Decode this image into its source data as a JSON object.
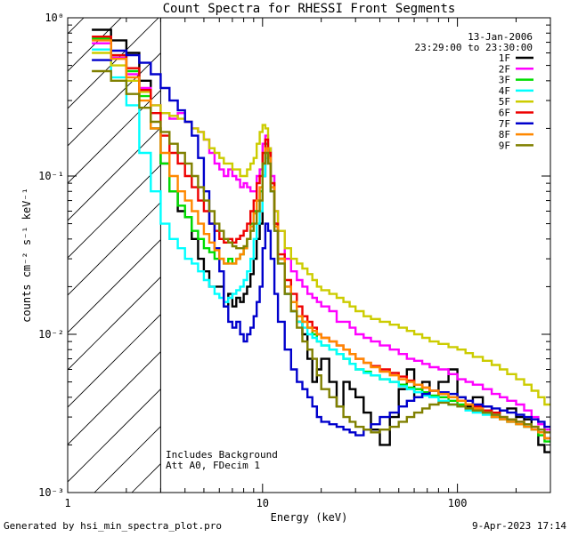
{
  "chart_data": {
    "type": "line",
    "title": "Count Spectra for RHESSI Front Segments",
    "xlabel": "Energy (keV)",
    "ylabel": "counts cm⁻² s⁻¹ keV⁻¹",
    "xscale": "log",
    "yscale": "log",
    "xlim": [
      1,
      300
    ],
    "ylim": [
      0.001,
      1
    ],
    "x_ticks": [
      {
        "value": 1,
        "label": "1"
      },
      {
        "value": 10,
        "label": "10"
      },
      {
        "value": 100,
        "label": "100"
      }
    ],
    "y_ticks": [
      {
        "value": 0.001,
        "label": "10⁻³"
      },
      {
        "value": 0.01,
        "label": "10⁻²"
      },
      {
        "value": 0.1,
        "label": "10⁻¹"
      },
      {
        "value": 1,
        "label": "10⁰"
      }
    ],
    "date": "13-Jan-2006",
    "time_range": "23:29:00 to 23:30:00",
    "shaded_region": {
      "x_from": 1,
      "x_to": 3
    },
    "annotations": [
      "Includes Background",
      "Att A0, FDecim 1"
    ],
    "footer_left": "Generated by hsi_min_spectra_plot.pro",
    "footer_right": "9-Apr-2023 17:14",
    "legend_position": "top-right",
    "energy_bins": [
      1.33,
      1.67,
      2.0,
      2.33,
      2.67,
      3.0,
      3.33,
      3.67,
      4.0,
      4.33,
      4.67,
      5.0,
      5.33,
      5.67,
      6.0,
      6.33,
      6.67,
      7.0,
      7.33,
      7.67,
      8.0,
      8.33,
      8.67,
      9.0,
      9.33,
      9.67,
      10.0,
      10.33,
      10.67,
      11.0,
      11.5,
      12.0,
      13.0,
      14.0,
      15.0,
      16.0,
      17.0,
      18.0,
      19.0,
      20.0,
      22.0,
      24.0,
      26.0,
      28.0,
      30.0,
      33.0,
      36.0,
      40.0,
      45.0,
      50.0,
      55.0,
      60.0,
      66.0,
      72.0,
      80.0,
      90.0,
      100.0,
      110.0,
      120.0,
      135.0,
      150.0,
      165.0,
      180.0,
      200.0,
      220.0,
      240.0,
      260.0,
      280.0,
      300.0
    ],
    "series": [
      {
        "name": "1F",
        "color": "#000000",
        "values": [
          0.84,
          0.72,
          0.6,
          0.4,
          0.2,
          0.12,
          0.08,
          0.06,
          0.055,
          0.04,
          0.03,
          0.025,
          0.02,
          0.02,
          0.02,
          0.015,
          0.018,
          0.015,
          0.017,
          0.016,
          0.018,
          0.02,
          0.024,
          0.03,
          0.04,
          0.05,
          0.1,
          0.13,
          0.15,
          0.08,
          0.05,
          0.03,
          0.018,
          0.014,
          0.012,
          0.01,
          0.007,
          0.005,
          0.006,
          0.007,
          0.005,
          0.0035,
          0.005,
          0.0045,
          0.004,
          0.0032,
          0.0025,
          0.002,
          0.003,
          0.0045,
          0.006,
          0.004,
          0.005,
          0.004,
          0.005,
          0.006,
          0.004,
          0.0035,
          0.004,
          0.0035,
          0.003,
          0.0033,
          0.0034,
          0.003,
          0.0029,
          0.0025,
          0.002,
          0.0018,
          0.002
        ]
      },
      {
        "name": "2F",
        "color": "#ff00ff",
        "values": [
          0.69,
          0.56,
          0.44,
          0.36,
          0.28,
          0.25,
          0.23,
          0.25,
          0.22,
          0.2,
          0.19,
          0.17,
          0.14,
          0.12,
          0.11,
          0.1,
          0.11,
          0.1,
          0.095,
          0.085,
          0.09,
          0.085,
          0.08,
          0.08,
          0.1,
          0.11,
          0.16,
          0.18,
          0.15,
          0.1,
          0.06,
          0.045,
          0.03,
          0.025,
          0.022,
          0.02,
          0.018,
          0.017,
          0.016,
          0.015,
          0.014,
          0.012,
          0.012,
          0.011,
          0.01,
          0.0095,
          0.009,
          0.0085,
          0.008,
          0.0075,
          0.007,
          0.0068,
          0.0065,
          0.0062,
          0.006,
          0.0056,
          0.0052,
          0.005,
          0.0048,
          0.0045,
          0.0042,
          0.004,
          0.0038,
          0.0036,
          0.0033,
          0.003,
          0.0027,
          0.0025,
          0.0022
        ]
      },
      {
        "name": "3F",
        "color": "#00dd00",
        "values": [
          0.74,
          0.58,
          0.46,
          0.32,
          0.2,
          0.12,
          0.08,
          0.065,
          0.055,
          0.045,
          0.04,
          0.035,
          0.033,
          0.03,
          0.03,
          0.028,
          0.03,
          0.028,
          0.03,
          0.032,
          0.035,
          0.04,
          0.05,
          0.06,
          0.07,
          0.08,
          0.12,
          0.16,
          0.14,
          0.09,
          0.05,
          0.03,
          0.02,
          0.016,
          0.013,
          0.012,
          0.011,
          0.01,
          0.009,
          0.0085,
          0.008,
          0.0075,
          0.007,
          0.0065,
          0.006,
          0.0058,
          0.0055,
          0.0052,
          0.005,
          0.0048,
          0.0046,
          0.0045,
          0.0043,
          0.0041,
          0.004,
          0.0038,
          0.0036,
          0.0034,
          0.0033,
          0.0032,
          0.003,
          0.0029,
          0.0028,
          0.0027,
          0.0026,
          0.0025,
          0.0023,
          0.0021,
          0.0019
        ]
      },
      {
        "name": "4F",
        "color": "#00ffff",
        "values": [
          0.63,
          0.42,
          0.28,
          0.14,
          0.08,
          0.05,
          0.04,
          0.035,
          0.03,
          0.028,
          0.025,
          0.022,
          0.02,
          0.018,
          0.017,
          0.016,
          0.017,
          0.018,
          0.019,
          0.02,
          0.022,
          0.025,
          0.03,
          0.04,
          0.05,
          0.06,
          0.1,
          0.13,
          0.12,
          0.08,
          0.045,
          0.028,
          0.018,
          0.014,
          0.012,
          0.011,
          0.01,
          0.0095,
          0.009,
          0.0085,
          0.008,
          0.0075,
          0.007,
          0.0065,
          0.006,
          0.0057,
          0.0055,
          0.0052,
          0.005,
          0.0047,
          0.0045,
          0.0043,
          0.0041,
          0.004,
          0.0038,
          0.0036,
          0.0035,
          0.0033,
          0.0032,
          0.0031,
          0.003,
          0.0029,
          0.0028,
          0.0027,
          0.0026,
          0.0025,
          0.0024,
          0.0022,
          0.002
        ]
      },
      {
        "name": "5F",
        "color": "#cccc00",
        "values": [
          0.6,
          0.5,
          0.4,
          0.34,
          0.28,
          0.25,
          0.24,
          0.23,
          0.22,
          0.2,
          0.19,
          0.17,
          0.15,
          0.14,
          0.13,
          0.12,
          0.12,
          0.11,
          0.11,
          0.1,
          0.1,
          0.11,
          0.12,
          0.13,
          0.16,
          0.19,
          0.21,
          0.2,
          0.15,
          0.09,
          0.06,
          0.045,
          0.035,
          0.03,
          0.028,
          0.026,
          0.024,
          0.022,
          0.02,
          0.019,
          0.018,
          0.017,
          0.016,
          0.015,
          0.014,
          0.013,
          0.0125,
          0.012,
          0.0115,
          0.011,
          0.0105,
          0.01,
          0.0095,
          0.009,
          0.0087,
          0.0083,
          0.008,
          0.0076,
          0.0072,
          0.0068,
          0.0064,
          0.006,
          0.0056,
          0.0052,
          0.0048,
          0.0044,
          0.004,
          0.0036,
          0.0032
        ]
      },
      {
        "name": "6F",
        "color": "#ee0000",
        "values": [
          0.76,
          0.58,
          0.48,
          0.35,
          0.25,
          0.18,
          0.14,
          0.12,
          0.1,
          0.085,
          0.07,
          0.06,
          0.05,
          0.045,
          0.04,
          0.038,
          0.04,
          0.038,
          0.04,
          0.042,
          0.045,
          0.05,
          0.06,
          0.07,
          0.09,
          0.1,
          0.14,
          0.17,
          0.14,
          0.09,
          0.05,
          0.032,
          0.022,
          0.018,
          0.015,
          0.013,
          0.012,
          0.011,
          0.01,
          0.0095,
          0.009,
          0.0085,
          0.008,
          0.0075,
          0.007,
          0.0066,
          0.0063,
          0.006,
          0.0057,
          0.0054,
          0.0051,
          0.0048,
          0.0046,
          0.0044,
          0.0042,
          0.004,
          0.0038,
          0.0036,
          0.0035,
          0.0033,
          0.0032,
          0.003,
          0.0029,
          0.0028,
          0.0027,
          0.0026,
          0.0024,
          0.0022,
          0.002
        ]
      },
      {
        "name": "7F",
        "color": "#0000cc",
        "values": [
          0.54,
          0.62,
          0.58,
          0.52,
          0.44,
          0.36,
          0.3,
          0.26,
          0.22,
          0.18,
          0.13,
          0.08,
          0.05,
          0.035,
          0.025,
          0.015,
          0.012,
          0.011,
          0.012,
          0.01,
          0.009,
          0.01,
          0.011,
          0.013,
          0.016,
          0.02,
          0.035,
          0.05,
          0.045,
          0.03,
          0.018,
          0.012,
          0.008,
          0.006,
          0.005,
          0.0045,
          0.004,
          0.0035,
          0.003,
          0.0028,
          0.0027,
          0.0026,
          0.0025,
          0.0024,
          0.0023,
          0.0025,
          0.0027,
          0.003,
          0.0032,
          0.0035,
          0.0038,
          0.004,
          0.0042,
          0.0044,
          0.0043,
          0.0042,
          0.004,
          0.0038,
          0.0036,
          0.0035,
          0.0034,
          0.0033,
          0.0032,
          0.0031,
          0.003,
          0.0029,
          0.0028,
          0.0026,
          0.0024
        ]
      },
      {
        "name": "8F",
        "color": "#ff8800",
        "values": [
          0.72,
          0.55,
          0.42,
          0.3,
          0.2,
          0.14,
          0.1,
          0.08,
          0.07,
          0.06,
          0.05,
          0.043,
          0.038,
          0.034,
          0.03,
          0.028,
          0.028,
          0.028,
          0.03,
          0.032,
          0.035,
          0.04,
          0.048,
          0.058,
          0.07,
          0.085,
          0.12,
          0.15,
          0.13,
          0.085,
          0.048,
          0.03,
          0.02,
          0.016,
          0.013,
          0.012,
          0.011,
          0.0105,
          0.01,
          0.0095,
          0.009,
          0.0085,
          0.008,
          0.0075,
          0.007,
          0.0066,
          0.0062,
          0.0058,
          0.0055,
          0.0052,
          0.005,
          0.0048,
          0.0046,
          0.0044,
          0.0042,
          0.004,
          0.0038,
          0.0036,
          0.0034,
          0.0032,
          0.003,
          0.0029,
          0.0028,
          0.0027,
          0.0026,
          0.0025,
          0.0024,
          0.0022,
          0.002
        ]
      },
      {
        "name": "9F",
        "color": "#808000",
        "values": [
          0.46,
          0.4,
          0.33,
          0.27,
          0.22,
          0.19,
          0.16,
          0.14,
          0.12,
          0.1,
          0.085,
          0.07,
          0.06,
          0.05,
          0.045,
          0.04,
          0.038,
          0.036,
          0.035,
          0.035,
          0.036,
          0.04,
          0.045,
          0.05,
          0.06,
          0.07,
          0.12,
          0.14,
          0.12,
          0.08,
          0.045,
          0.028,
          0.018,
          0.014,
          0.011,
          0.009,
          0.008,
          0.007,
          0.0055,
          0.0045,
          0.004,
          0.0035,
          0.003,
          0.0028,
          0.0026,
          0.0025,
          0.0024,
          0.0025,
          0.0026,
          0.0028,
          0.003,
          0.0032,
          0.0034,
          0.0036,
          0.0037,
          0.0036,
          0.0035,
          0.0034,
          0.0033,
          0.0032,
          0.0031,
          0.003,
          0.0029,
          0.0028,
          0.0027,
          0.0026,
          0.0025,
          0.0024,
          0.0022
        ]
      }
    ]
  }
}
